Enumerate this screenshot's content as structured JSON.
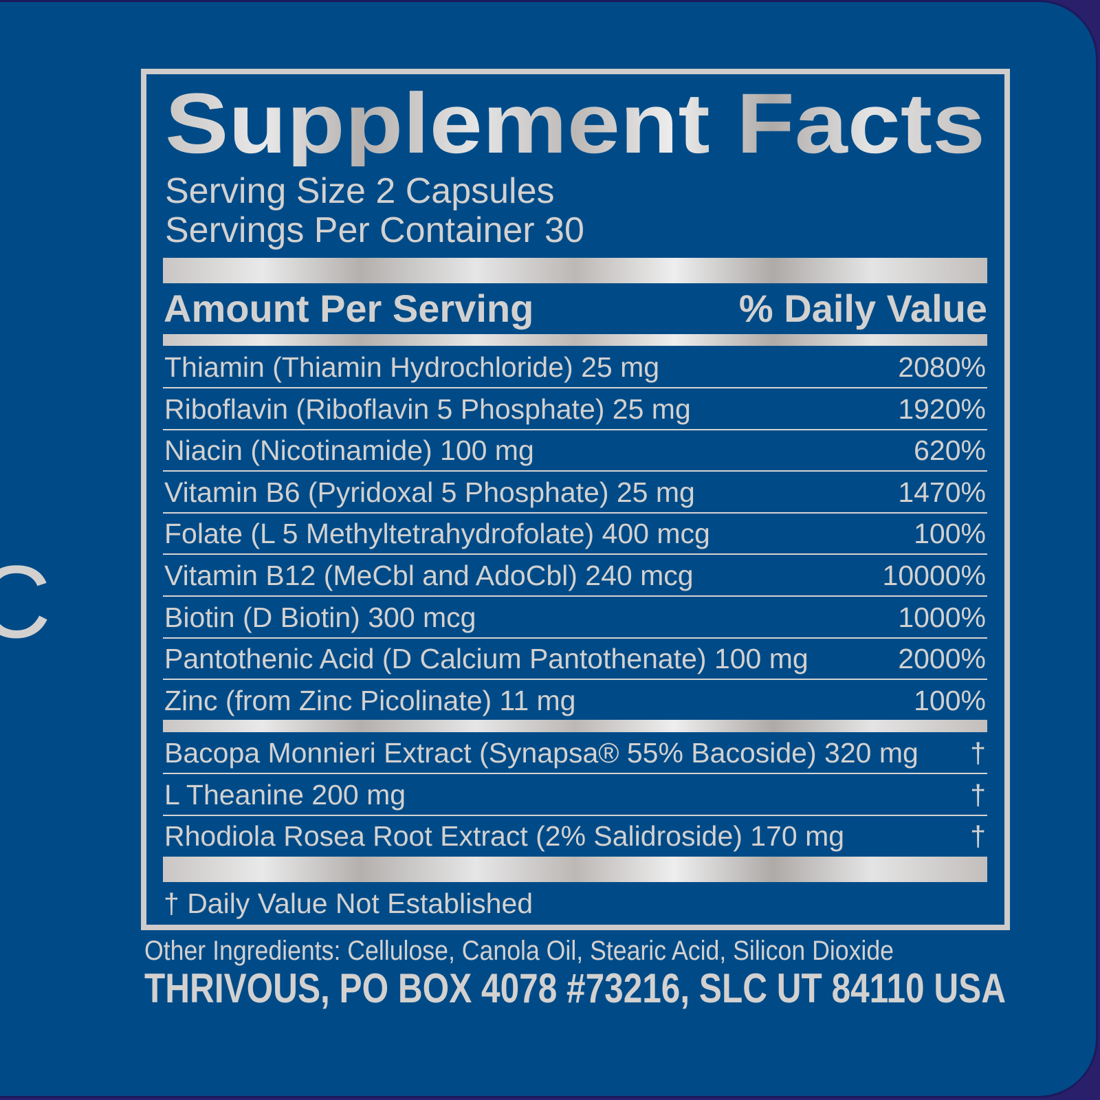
{
  "colors": {
    "background": "#004b87",
    "silver": "#d3d1d0",
    "outline": "#1c1a5e"
  },
  "edge_fragment": "C",
  "title": "Supplement Facts",
  "serving_size": "Serving Size 2 Capsules",
  "servings_per_container": "Servings Per Container 30",
  "header": {
    "amount": "Amount Per Serving",
    "dv": "% Daily Value"
  },
  "nutrients": [
    {
      "name": "Thiamin (Thiamin Hydrochloride) 25 mg",
      "dv": "2080%"
    },
    {
      "name": "Riboflavin (Riboflavin 5 Phosphate) 25 mg",
      "dv": "1920%"
    },
    {
      "name": "Niacin (Nicotinamide) 100 mg",
      "dv": "620%"
    },
    {
      "name": "Vitamin B6 (Pyridoxal 5 Phosphate) 25 mg",
      "dv": "1470%"
    },
    {
      "name": "Folate (L 5 Methyltetrahydrofolate) 400 mcg",
      "dv": "100%"
    },
    {
      "name": "Vitamin B12 (MeCbl and AdoCbl) 240 mcg",
      "dv": "10000%"
    },
    {
      "name": "Biotin (D Biotin) 300 mcg",
      "dv": "1000%"
    },
    {
      "name": "Pantothenic Acid (D Calcium Pantothenate) 100 mg",
      "dv": "2000%"
    },
    {
      "name": "Zinc (from Zinc Picolinate) 11 mg",
      "dv": "100%"
    }
  ],
  "other_nutrients": [
    {
      "name": "Bacopa Monnieri Extract (Synapsa® 55% Bacoside) 320 mg",
      "dv": "†"
    },
    {
      "name": "L Theanine 200 mg",
      "dv": "†"
    },
    {
      "name": "Rhodiola Rosea Root Extract (2% Salidroside) 170 mg",
      "dv": "†"
    }
  ],
  "footnote": "† Daily Value Not Established",
  "other_ingredients": "Other Ingredients: Cellulose, Canola Oil, Stearic Acid, Silicon Dioxide",
  "address": "THRIVOUS, PO BOX 4078 #73216, SLC UT 84110 USA"
}
